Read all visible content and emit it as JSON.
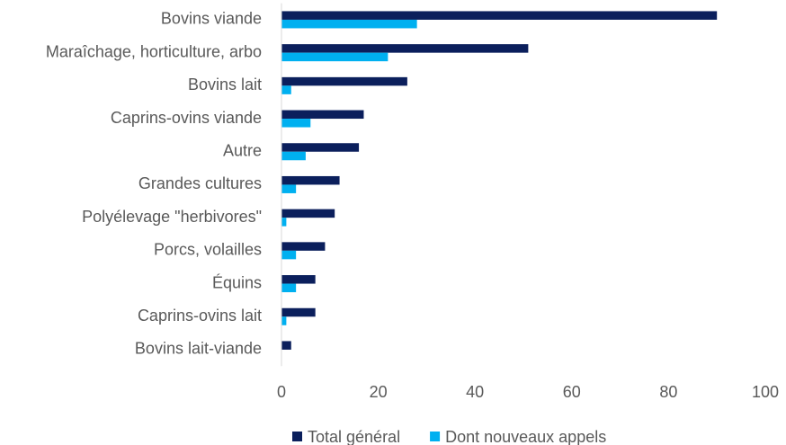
{
  "chart_data": {
    "type": "bar",
    "orientation": "horizontal",
    "categories": [
      "Bovins viande",
      "Maraîchage, horticulture, arbo",
      "Bovins lait",
      "Caprins-ovins viande",
      "Autre",
      "Grandes cultures",
      "Polyélevage \"herbivores\"",
      "Porcs, volailles",
      "Équins",
      "Caprins-ovins lait",
      "Bovins lait-viande"
    ],
    "series": [
      {
        "name": "Total général",
        "color": "#0b1f5c",
        "values": [
          90,
          51,
          26,
          17,
          16,
          12,
          11,
          9,
          7,
          7,
          2
        ]
      },
      {
        "name": "Dont nouveaux appels",
        "color": "#00b0f0",
        "values": [
          28,
          22,
          2,
          6,
          5,
          3,
          1,
          3,
          3,
          1,
          0
        ]
      }
    ],
    "xlim": [
      0,
      100
    ],
    "xticks": [
      0,
      20,
      40,
      60,
      80,
      100
    ],
    "grid": false,
    "legend": "bottom"
  }
}
